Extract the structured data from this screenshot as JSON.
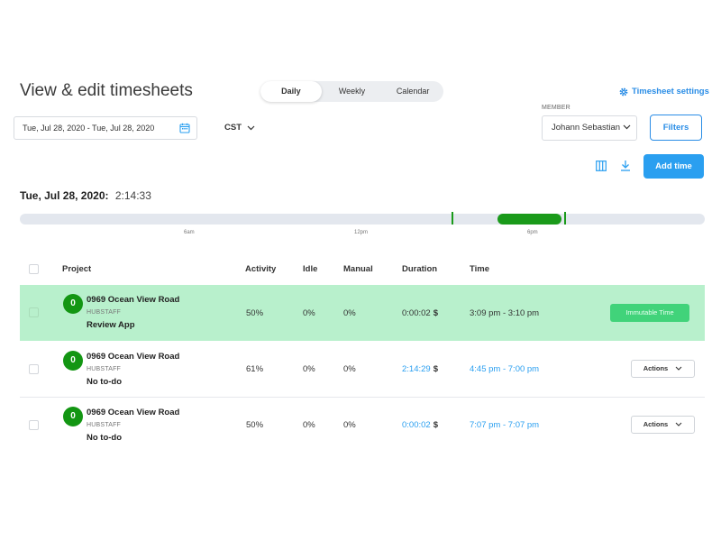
{
  "header": {
    "title": "View & edit timesheets",
    "settings_label": "Timesheet settings"
  },
  "view_toggle": {
    "options": [
      "Daily",
      "Weekly",
      "Calendar"
    ],
    "active": "Daily"
  },
  "filters": {
    "date_range": "Tue, Jul 28, 2020 - Tue, Jul 28, 2020",
    "timezone": "CST",
    "member_label": "MEMBER",
    "member_value": "Johann Sebastian",
    "filters_label": "Filters",
    "add_time_label": "Add time"
  },
  "day": {
    "date": "Tue, Jul 28, 2020:",
    "total": "2:14:33"
  },
  "timeline": {
    "labels": [
      "6am",
      "12pm",
      "6pm"
    ],
    "segment_color": "#1a9a1a"
  },
  "table": {
    "headers": {
      "project": "Project",
      "activity": "Activity",
      "idle": "Idle",
      "manual": "Manual",
      "duration": "Duration",
      "time": "Time"
    },
    "rows": [
      {
        "avatar": "0",
        "project": "0969 Ocean View Road",
        "org": "HUBSTAFF",
        "todo": "Review App",
        "activity": "50%",
        "idle": "0%",
        "manual": "0%",
        "duration": "0:00:02",
        "currency": "$",
        "time": "3:09 pm - 3:10 pm",
        "action": "Immutable Time"
      },
      {
        "avatar": "0",
        "project": "0969 Ocean View Road",
        "org": "HUBSTAFF",
        "todo": "No to-do",
        "activity": "61%",
        "idle": "0%",
        "manual": "0%",
        "duration": "2:14:29",
        "currency": "$",
        "time": "4:45 pm - 7:00 pm",
        "action": "Actions"
      },
      {
        "avatar": "0",
        "project": "0969 Ocean View Road",
        "org": "HUBSTAFF",
        "todo": "No to-do",
        "activity": "50%",
        "idle": "0%",
        "manual": "0%",
        "duration": "0:00:02",
        "currency": "$",
        "time": "7:07 pm - 7:07 pm",
        "action": "Actions"
      }
    ]
  },
  "colors": {
    "accent": "#2a9ff0",
    "highlight_row": "#b8f0cc",
    "avatar": "#139613",
    "immutable": "#41d37a"
  }
}
